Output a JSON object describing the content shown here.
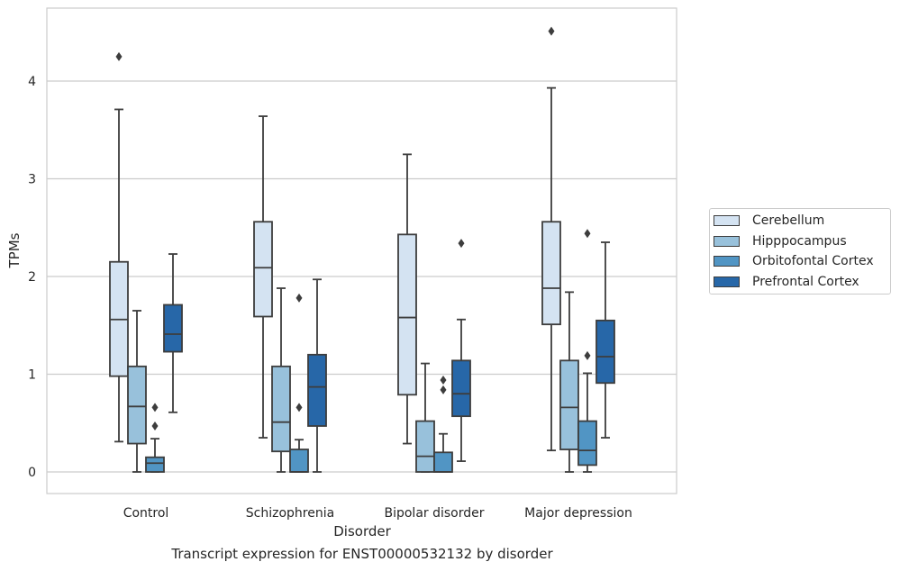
{
  "chart_data": {
    "type": "box",
    "xlabel": "Disorder",
    "ylabel": "TPMs",
    "caption": "Transcript expression for ENST00000532132 by disorder",
    "ylim": [
      -0.22,
      4.75
    ],
    "yticks": [
      "0",
      "1",
      "2",
      "3",
      "4"
    ],
    "grid": "horizontal",
    "legend_position": "right",
    "categories": [
      "Control",
      "Schizophrenia",
      "Bipolar disorder",
      "Major depression"
    ],
    "series": [
      {
        "name": "Cerebellum",
        "color": "#d4e3f2",
        "boxes": [
          {
            "whisker_low": 0.31,
            "q1": 0.98,
            "median": 1.56,
            "q3": 2.15,
            "whisker_high": 3.71,
            "outliers": [
              4.25
            ]
          },
          {
            "whisker_low": 0.35,
            "q1": 1.59,
            "median": 2.09,
            "q3": 2.56,
            "whisker_high": 3.64,
            "outliers": []
          },
          {
            "whisker_low": 0.29,
            "q1": 0.79,
            "median": 1.58,
            "q3": 2.43,
            "whisker_high": 3.25,
            "outliers": []
          },
          {
            "whisker_low": 0.22,
            "q1": 1.51,
            "median": 1.88,
            "q3": 2.56,
            "whisker_high": 3.93,
            "outliers": [
              4.51
            ]
          }
        ]
      },
      {
        "name": "Hipppocampus",
        "color": "#98c1db",
        "boxes": [
          {
            "whisker_low": 0.0,
            "q1": 0.29,
            "median": 0.67,
            "q3": 1.08,
            "whisker_high": 1.65,
            "outliers": []
          },
          {
            "whisker_low": 0.0,
            "q1": 0.21,
            "median": 0.51,
            "q3": 1.08,
            "whisker_high": 1.88,
            "outliers": []
          },
          {
            "whisker_low": 0.0,
            "q1": 0.0,
            "median": 0.16,
            "q3": 0.52,
            "whisker_high": 1.11,
            "outliers": []
          },
          {
            "whisker_low": 0.0,
            "q1": 0.23,
            "median": 0.66,
            "q3": 1.14,
            "whisker_high": 1.84,
            "outliers": []
          }
        ]
      },
      {
        "name": "Orbitofontal Cortex",
        "color": "#5195c4",
        "boxes": [
          {
            "whisker_low": 0.0,
            "q1": 0.0,
            "median": 0.09,
            "q3": 0.15,
            "whisker_high": 0.34,
            "outliers": [
              0.47,
              0.66
            ]
          },
          {
            "whisker_low": 0.0,
            "q1": 0.0,
            "median": 0.0,
            "q3": 0.23,
            "whisker_high": 0.33,
            "outliers": [
              0.66,
              1.78
            ]
          },
          {
            "whisker_low": 0.0,
            "q1": 0.0,
            "median": 0.0,
            "q3": 0.2,
            "whisker_high": 0.39,
            "outliers": [
              0.84,
              0.94
            ]
          },
          {
            "whisker_low": 0.0,
            "q1": 0.07,
            "median": 0.22,
            "q3": 0.52,
            "whisker_high": 1.01,
            "outliers": [
              1.19,
              2.44
            ]
          }
        ]
      },
      {
        "name": "Prefrontal Cortex",
        "color": "#2767a8",
        "boxes": [
          {
            "whisker_low": 0.61,
            "q1": 1.23,
            "median": 1.41,
            "q3": 1.71,
            "whisker_high": 2.23,
            "outliers": []
          },
          {
            "whisker_low": 0.0,
            "q1": 0.47,
            "median": 0.87,
            "q3": 1.2,
            "whisker_high": 1.97,
            "outliers": []
          },
          {
            "whisker_low": 0.11,
            "q1": 0.57,
            "median": 0.8,
            "q3": 1.14,
            "whisker_high": 1.56,
            "outliers": [
              2.34
            ]
          },
          {
            "whisker_low": 0.35,
            "q1": 0.91,
            "median": 1.18,
            "q3": 1.55,
            "whisker_high": 2.35,
            "outliers": []
          }
        ]
      }
    ]
  }
}
